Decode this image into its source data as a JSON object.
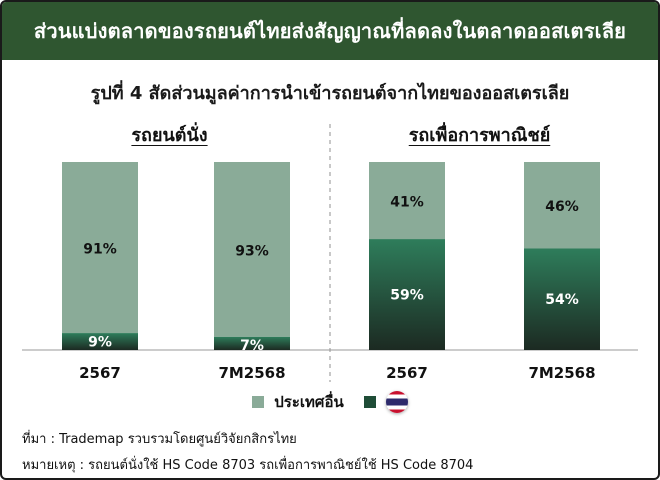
{
  "header": {
    "title": "ส่วนแบ่งตลาดของรถยนต์ไทยส่งสัญญาณที่ลดลงในตลาดออสเตรเลีย"
  },
  "subtitle": "รูปที่ 4 สัดส่วนมูลค่าการนำเข้ารถยนต์จากไทยของออสเตรเลีย",
  "colors": {
    "others": "#8aab98",
    "thailand_top": "#2e7d5b",
    "thailand_bottom": "#1c2a22",
    "header_bg": "#2f5630"
  },
  "chart_data": [
    {
      "type": "bar",
      "stacked": true,
      "title": "รถยนต์นั่ง",
      "categories": [
        "2567",
        "7M2568"
      ],
      "series": [
        {
          "name": "",
          "values": [
            9,
            7
          ],
          "labels": [
            "9%",
            "7%"
          ]
        },
        {
          "name": "ประเทศอื่น",
          "values": [
            91,
            93
          ],
          "labels": [
            "91%",
            "93%"
          ]
        }
      ],
      "ylim": [
        0,
        100
      ]
    },
    {
      "type": "bar",
      "stacked": true,
      "title": "รถเพื่อการพาณิชย์",
      "categories": [
        "2567",
        "7M2568"
      ],
      "series": [
        {
          "name": "",
          "values": [
            59,
            54
          ],
          "labels": [
            "59%",
            "54%"
          ]
        },
        {
          "name": "ประเทศอื่น",
          "values": [
            41,
            46
          ],
          "labels": [
            "41%",
            "46%"
          ]
        }
      ],
      "ylim": [
        0,
        100
      ]
    }
  ],
  "legend": {
    "others_label": "ประเทศอื่น"
  },
  "notes": {
    "source": "ที่มา : Trademap รวบรวมโดยศูนย์วิจัยกสิกรไทย",
    "remark": "หมายเหตุ : รถยนต์นั่งใช้ HS Code 8703 รถเพื่อการพาณิชย์ใช้ HS Code 8704"
  }
}
